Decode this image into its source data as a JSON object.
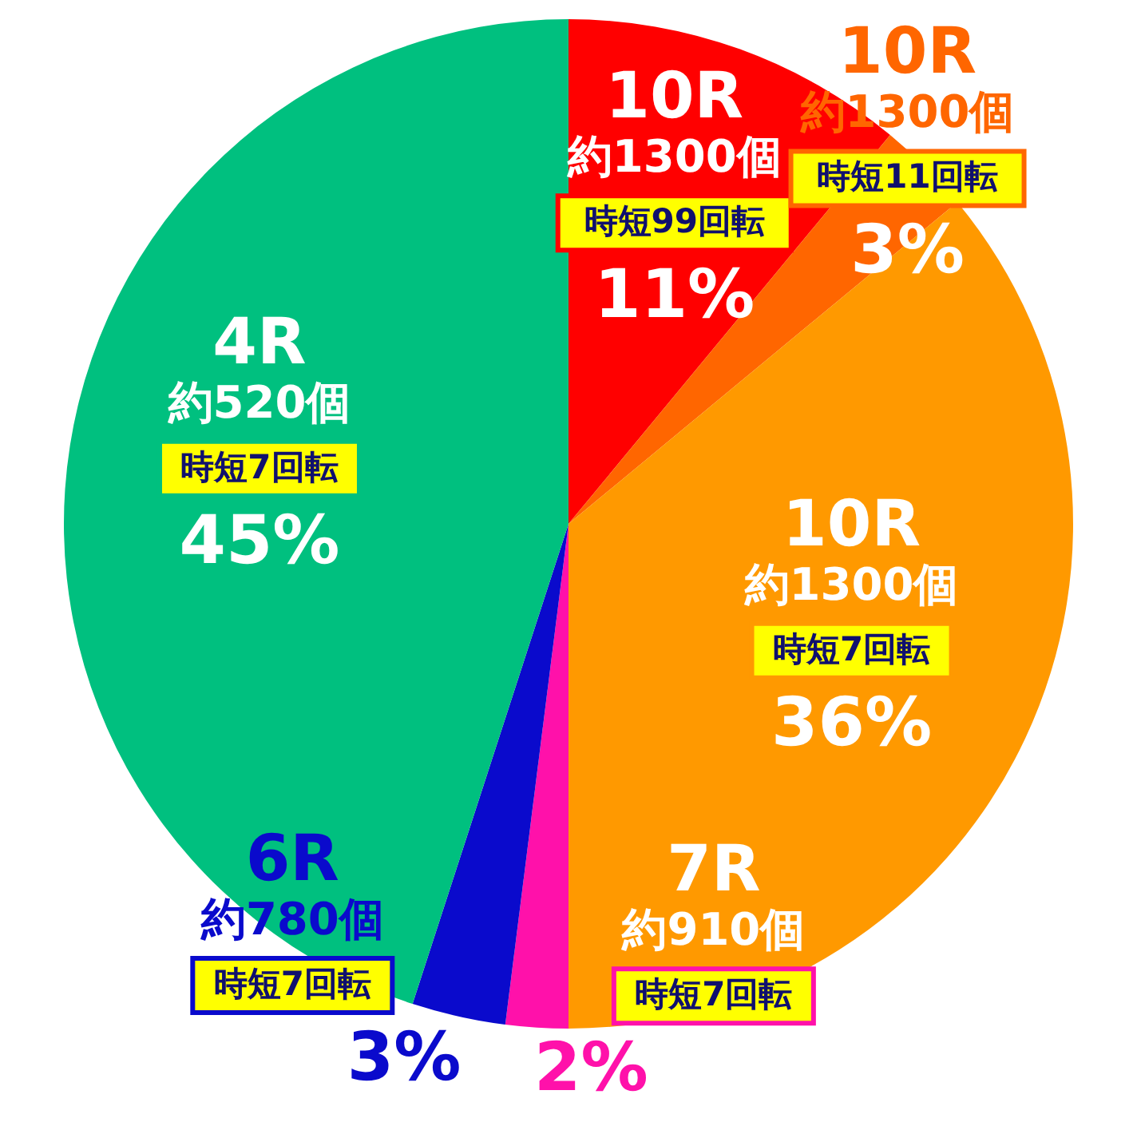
{
  "chart_data": {
    "type": "pie",
    "categories": [
      "10R\n約1300個",
      "10R\n約1300個",
      "10R\n約1300個",
      "7R\n約910個",
      "6R\n約780個",
      "4R\n約520個"
    ],
    "annotations": [
      "時短99回転",
      "時短11回転",
      "時短7回転",
      "時短7回転",
      "時短7回転",
      "時短7回転"
    ],
    "values": [
      11,
      3,
      36,
      2,
      3,
      45
    ],
    "colors": [
      "#ff0000",
      "#ff6600",
      "#ff9900",
      "#ff11aa",
      "#0a0acc",
      "#00c07f"
    ],
    "value_labels": [
      "11%",
      "3%",
      "36%",
      "2%",
      "3%",
      "45%"
    ]
  }
}
